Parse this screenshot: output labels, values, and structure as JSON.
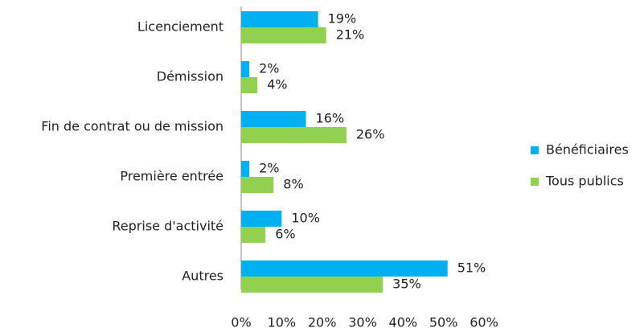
{
  "chart_data": {
    "type": "bar",
    "orientation": "horizontal",
    "categories": [
      "Licenciement",
      "Démission",
      "Fin de contrat ou de mission",
      "Première entrée",
      "Reprise d'activité",
      "Autres"
    ],
    "series": [
      {
        "name": "Bénéficiaires",
        "color": "#00b0f0",
        "values": [
          19,
          2,
          16,
          2,
          10,
          51
        ],
        "value_labels": [
          "19%",
          "2%",
          "16%",
          "2%",
          "10%",
          "51%"
        ]
      },
      {
        "name": "Tous publics",
        "color": "#92d050",
        "values": [
          21,
          4,
          26,
          8,
          6,
          35
        ],
        "value_labels": [
          "21%",
          "4%",
          "26%",
          "8%",
          "6%",
          "35%"
        ]
      }
    ],
    "xlim": [
      0,
      60
    ],
    "xticks": [
      {
        "value": 0,
        "label": "0%"
      },
      {
        "value": 10,
        "label": "10%"
      },
      {
        "value": 20,
        "label": "20%"
      },
      {
        "value": 30,
        "label": "30%"
      },
      {
        "value": 40,
        "label": "40%"
      },
      {
        "value": 50,
        "label": "50%"
      },
      {
        "value": 60,
        "label": "60%"
      }
    ],
    "grid": false,
    "legend": "right"
  }
}
